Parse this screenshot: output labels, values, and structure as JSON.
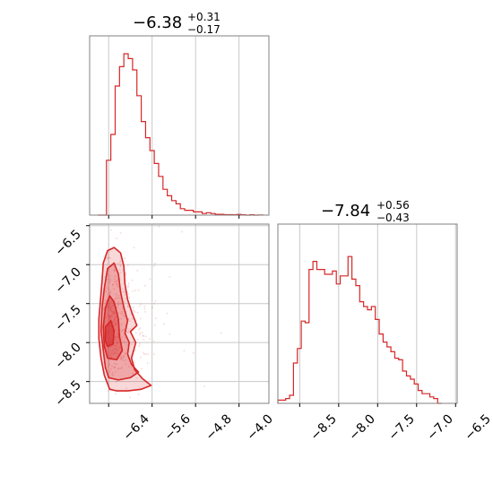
{
  "colors": {
    "accent": "#d62728",
    "grid": "#c8c8c8",
    "frame": "#808080"
  },
  "chart_data": [
    {
      "type": "histogram",
      "panel": "top-left",
      "title": {
        "value": "−6.38",
        "plus": "+0.31",
        "minus": "−0.17"
      },
      "xlim": [
        -6.75,
        -3.45
      ],
      "grid": true,
      "tick_values": [
        -6.4,
        -5.6,
        -4.8,
        -4.0
      ],
      "bin_width": 0.08,
      "x_start": -6.6,
      "heights": [
        0.0,
        0.0,
        0.34,
        0.5,
        0.8,
        0.92,
        1.0,
        0.97,
        0.9,
        0.74,
        0.58,
        0.48,
        0.4,
        0.32,
        0.24,
        0.16,
        0.12,
        0.09,
        0.07,
        0.04,
        0.03,
        0.03,
        0.02,
        0.02,
        0.01,
        0.015,
        0.01,
        0.005,
        0.005,
        0.003,
        0.003,
        0.002,
        0.004,
        0.002,
        0.0,
        0.002,
        0.0,
        0.001
      ]
    },
    {
      "type": "histogram",
      "panel": "bottom-right",
      "title": {
        "value": "−7.84",
        "plus": "+0.56",
        "minus": "−0.43"
      },
      "xlim": [
        -8.78,
        -6.48
      ],
      "grid": true,
      "tick_labels": [
        "−8.5",
        "−8.0",
        "−7.5",
        "−7.0",
        "−6.5"
      ],
      "tick_values": [
        -8.5,
        -8.0,
        -7.5,
        -7.0,
        -6.5
      ],
      "bin_width": 0.05,
      "x_start": -8.78,
      "heights": [
        0.02,
        0.02,
        0.03,
        0.05,
        0.25,
        0.34,
        0.51,
        0.5,
        0.83,
        0.88,
        0.83,
        0.83,
        0.8,
        0.8,
        0.82,
        0.74,
        0.79,
        0.79,
        0.91,
        0.77,
        0.73,
        0.63,
        0.6,
        0.58,
        0.6,
        0.52,
        0.43,
        0.38,
        0.35,
        0.32,
        0.28,
        0.27,
        0.2,
        0.17,
        0.15,
        0.12,
        0.08,
        0.06,
        0.06,
        0.04,
        0.03,
        0.0
      ]
    },
    {
      "type": "contour-scatter",
      "panel": "bottom-left",
      "xlim": [
        -6.75,
        -3.45
      ],
      "ylim": [
        -8.78,
        -6.48
      ],
      "grid": true,
      "x_tick_labels": [
        "−6.4",
        "−5.6",
        "−4.8",
        "−4.0"
      ],
      "x_tick_values": [
        -6.4,
        -5.6,
        -4.8,
        -4.0
      ],
      "y_tick_labels": [
        "−6.5",
        "−7.0",
        "−7.5",
        "−8.0",
        "−8.5"
      ],
      "y_tick_values": [
        -6.5,
        -7.0,
        -7.5,
        -8.0,
        -8.5
      ],
      "outer_contour": [
        [
          -6.38,
          -8.6
        ],
        [
          -6.25,
          -8.62
        ],
        [
          -6.05,
          -8.62
        ],
        [
          -5.8,
          -8.6
        ],
        [
          -5.62,
          -8.55
        ],
        [
          -5.78,
          -8.46
        ],
        [
          -5.92,
          -8.35
        ],
        [
          -5.98,
          -8.2
        ],
        [
          -5.9,
          -8.0
        ],
        [
          -6.0,
          -7.86
        ],
        [
          -5.88,
          -7.78
        ],
        [
          -5.97,
          -7.62
        ],
        [
          -6.05,
          -7.45
        ],
        [
          -6.1,
          -7.25
        ],
        [
          -6.12,
          -7.02
        ],
        [
          -6.18,
          -6.85
        ],
        [
          -6.3,
          -6.78
        ],
        [
          -6.42,
          -6.82
        ],
        [
          -6.5,
          -6.98
        ],
        [
          -6.52,
          -7.2
        ],
        [
          -6.55,
          -7.45
        ],
        [
          -6.58,
          -7.7
        ],
        [
          -6.58,
          -7.95
        ],
        [
          -6.54,
          -8.2
        ],
        [
          -6.48,
          -8.42
        ]
      ],
      "mid_contour": [
        [
          -6.4,
          -8.45
        ],
        [
          -6.22,
          -8.48
        ],
        [
          -6.0,
          -8.45
        ],
        [
          -5.85,
          -8.38
        ],
        [
          -5.98,
          -8.28
        ],
        [
          -6.05,
          -8.15
        ],
        [
          -6.02,
          -8.0
        ],
        [
          -6.1,
          -7.88
        ],
        [
          -6.05,
          -7.72
        ],
        [
          -6.12,
          -7.55
        ],
        [
          -6.18,
          -7.35
        ],
        [
          -6.22,
          -7.12
        ],
        [
          -6.3,
          -6.98
        ],
        [
          -6.42,
          -7.05
        ],
        [
          -6.48,
          -7.3
        ],
        [
          -6.52,
          -7.55
        ],
        [
          -6.54,
          -7.85
        ],
        [
          -6.5,
          -8.1
        ],
        [
          -6.46,
          -8.32
        ]
      ],
      "inner_contour": [
        [
          -6.42,
          -8.2
        ],
        [
          -6.25,
          -8.22
        ],
        [
          -6.15,
          -8.1
        ],
        [
          -6.2,
          -7.92
        ],
        [
          -6.22,
          -7.7
        ],
        [
          -6.3,
          -7.48
        ],
        [
          -6.38,
          -7.4
        ],
        [
          -6.46,
          -7.55
        ],
        [
          -6.5,
          -7.8
        ],
        [
          -6.48,
          -8.05
        ]
      ],
      "core_contour": [
        [
          -6.42,
          -8.05
        ],
        [
          -6.32,
          -8.02
        ],
        [
          -6.3,
          -7.85
        ],
        [
          -6.36,
          -7.72
        ],
        [
          -6.46,
          -7.8
        ],
        [
          -6.46,
          -7.98
        ]
      ]
    }
  ]
}
